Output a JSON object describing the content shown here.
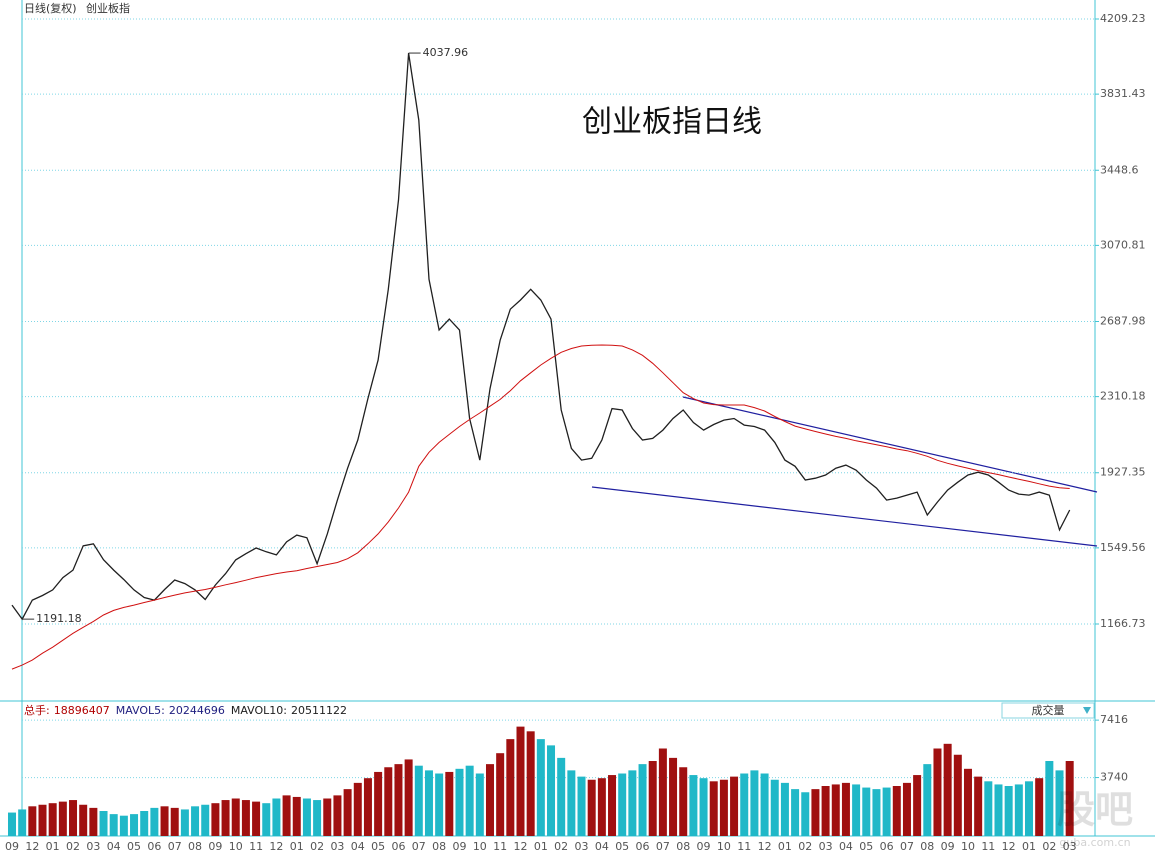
{
  "chart_data": [
    {
      "type": "line",
      "header": [
        "日线(复权)",
        "创业板指"
      ],
      "title": "创业板指日线",
      "categories": [
        "09",
        null,
        "12",
        null,
        "01",
        null,
        "02",
        null,
        "03",
        null,
        "04",
        null,
        "05",
        null,
        "06",
        null,
        "07",
        null,
        "08",
        null,
        "09",
        null,
        "10",
        null,
        "11",
        null,
        "12",
        null,
        "01",
        null,
        "02",
        null,
        "03",
        null,
        "04",
        null,
        "05",
        null,
        "06",
        null,
        "07",
        null,
        "08",
        null,
        "09",
        null,
        "10",
        null,
        "11",
        null,
        "12",
        null,
        "01",
        null,
        "02",
        null,
        "03",
        null,
        "04",
        null,
        "05",
        null,
        "06",
        null,
        "07",
        null,
        "08",
        null,
        "09",
        null,
        "10",
        null,
        "11",
        null,
        "12",
        null,
        "01",
        null,
        "02",
        null,
        "03",
        null,
        "04",
        null,
        "05",
        null,
        "06",
        null,
        "07",
        null,
        "08",
        null,
        "09",
        null,
        "10",
        null,
        "11",
        null,
        "12",
        null,
        "01",
        null,
        "02",
        null,
        "03"
      ],
      "series": [
        {
          "color": "#202020",
          "values": [
            1262,
            1191.18,
            1287,
            1310,
            1338,
            1400,
            1438,
            1560,
            1570,
            1490,
            1438,
            1390,
            1338,
            1300,
            1287,
            1340,
            1388,
            1370,
            1338,
            1290,
            1363,
            1420,
            1489,
            1520,
            1549,
            1530,
            1514,
            1580,
            1614,
            1600,
            1470,
            1620,
            1790,
            1950,
            2092,
            2300,
            2494,
            2850,
            3299,
            4037.96,
            3701,
            2900,
            2645,
            2700,
            2645,
            2200,
            1991,
            2350,
            2595,
            2750,
            2796,
            2850,
            2796,
            2700,
            2243,
            2050,
            1991,
            2000,
            2092,
            2250,
            2243,
            2150,
            2092,
            2100,
            2142,
            2200,
            2243,
            2180,
            2142,
            2170,
            2192,
            2200,
            2167,
            2160,
            2142,
            2080,
            1991,
            1960,
            1891,
            1900,
            1916,
            1950,
            1966,
            1940,
            1891,
            1850,
            1790,
            1800,
            1815,
            1830,
            1715,
            1780,
            1840,
            1880,
            1916,
            1930,
            1916,
            1880,
            1840,
            1820,
            1815,
            1830,
            1815,
            1640,
            1740
          ]
        },
        {
          "color": "#d01010",
          "values": [
            940,
            960,
            985,
            1020,
            1050,
            1085,
            1120,
            1150,
            1180,
            1212,
            1235,
            1250,
            1262,
            1275,
            1287,
            1300,
            1312,
            1323,
            1332,
            1340,
            1352,
            1364,
            1375,
            1387,
            1400,
            1410,
            1420,
            1428,
            1435,
            1446,
            1456,
            1466,
            1476,
            1495,
            1525,
            1570,
            1620,
            1680,
            1750,
            1830,
            1960,
            2030,
            2080,
            2120,
            2160,
            2195,
            2228,
            2262,
            2296,
            2340,
            2390,
            2430,
            2469,
            2503,
            2533,
            2552,
            2565,
            2569,
            2570,
            2569,
            2565,
            2545,
            2518,
            2478,
            2430,
            2380,
            2330,
            2300,
            2278,
            2270,
            2268,
            2268,
            2268,
            2255,
            2238,
            2210,
            2185,
            2162,
            2148,
            2135,
            2122,
            2110,
            2100,
            2088,
            2078,
            2068,
            2058,
            2047,
            2038,
            2025,
            2010,
            1990,
            1975,
            1962,
            1950,
            1938,
            1928,
            1918,
            1906,
            1895,
            1884,
            1872,
            1860,
            1852,
            1848
          ]
        }
      ],
      "annotations": [
        4037.96,
        1191.18
      ],
      "ylim": [
        784.5,
        4304.8
      ],
      "yticks": [
        4209.23,
        3831.43,
        3448.6,
        3070.81,
        2687.98,
        2310.18,
        1927.35,
        1549.56,
        1166.73
      ],
      "grid": true
    },
    {
      "type": "bar",
      "stats": [
        {
          "name": "总手:",
          "value": 18896407,
          "color": "#b00000"
        },
        {
          "name": "MAVOL5:",
          "value": 20244696,
          "color": "#202080"
        },
        {
          "name": "MAVOL10:",
          "value": 20511122,
          "color": "#202020"
        }
      ],
      "selector": "成交量",
      "values": [
        1500,
        1700,
        1900,
        2000,
        2100,
        2200,
        2300,
        2000,
        1800,
        1600,
        1400,
        1300,
        1400,
        1600,
        1800,
        1900,
        1800,
        1700,
        1900,
        2000,
        2100,
        2300,
        2400,
        2300,
        2200,
        2100,
        2400,
        2600,
        2500,
        2400,
        2300,
        2400,
        2600,
        3000,
        3400,
        3700,
        4100,
        4400,
        4600,
        4900,
        4500,
        4200,
        4000,
        4100,
        4300,
        4500,
        4000,
        4600,
        5300,
        6200,
        7000,
        6700,
        6200,
        5800,
        5000,
        4200,
        3800,
        3600,
        3700,
        3900,
        4000,
        4200,
        4600,
        4800,
        5600,
        5000,
        4400,
        3900,
        3700,
        3500,
        3600,
        3800,
        4000,
        4200,
        4000,
        3600,
        3400,
        3000,
        2800,
        3000,
        3200,
        3300,
        3400,
        3300,
        3100,
        3000,
        3100,
        3200,
        3400,
        3900,
        4600,
        5600,
        5900,
        5200,
        4300,
        3800,
        3500,
        3300,
        3200,
        3300,
        3500,
        3700,
        4800,
        4200,
        4800
      ],
      "up_color": "#a01010",
      "down_color": "#20b8c8",
      "ylim": [
        0,
        8448
      ],
      "yticks": [
        7416,
        3740
      ],
      "grid": true,
      "watermark": [
        "股吧",
        "guba.com.cn"
      ]
    }
  ]
}
